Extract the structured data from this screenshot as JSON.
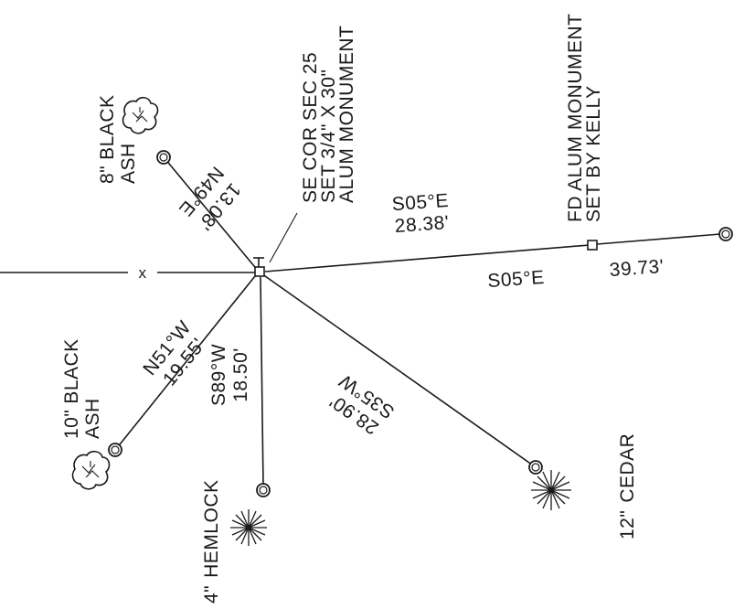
{
  "monument": {
    "label_line1": "SE COR SEC 25",
    "label_line2": "SET 3/4\" X 30\"",
    "label_line3": "ALUM MONUMENT",
    "tick_mark": "T"
  },
  "section_line": {
    "cross_mark": "x"
  },
  "found_monument": {
    "label_line1": "FD ALUM MONUMENT",
    "label_line2": "SET BY KELLY"
  },
  "courses": {
    "black_ash_8": {
      "bearing": "N49°E",
      "distance": "13.08'"
    },
    "black_ash_10": {
      "bearing": "N51°W",
      "distance": "19.55'"
    },
    "hemlock": {
      "bearing": "S89°W",
      "distance": "18.50'"
    },
    "cedar": {
      "bearing": "S35°W",
      "distance": "28.90'"
    },
    "to_found_monument": {
      "bearing": "S05°E",
      "distance": "28.38'"
    },
    "beyond_found_monument": {
      "bearing": "S05°E",
      "distance": "39.73'"
    }
  },
  "trees": {
    "black_ash_8": {
      "size": "8\"",
      "species_line1": "BLACK",
      "species_line2": "ASH",
      "symbol": "deciduous-tree-icon"
    },
    "black_ash_10": {
      "size": "10\"",
      "species_line1": "BLACK",
      "species_line2": "ASH",
      "symbol": "deciduous-tree-icon"
    },
    "hemlock": {
      "size": "4\"",
      "species": "HEMLOCK",
      "symbol": "conifer-tree-icon"
    },
    "cedar": {
      "size": "12\"",
      "species": "CEDAR",
      "symbol": "conifer-tree-icon"
    }
  }
}
